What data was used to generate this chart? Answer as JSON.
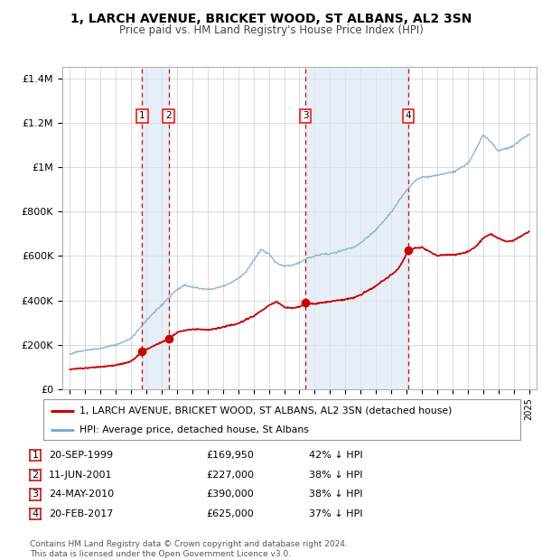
{
  "title": "1, LARCH AVENUE, BRICKET WOOD, ST ALBANS, AL2 3SN",
  "subtitle": "Price paid vs. HM Land Registry's House Price Index (HPI)",
  "background_color": "#ffffff",
  "plot_bg_color": "#ffffff",
  "grid_color": "#cccccc",
  "sale_dates": [
    1999.72,
    2001.44,
    2010.39,
    2017.13
  ],
  "sale_prices": [
    169950,
    227000,
    390000,
    625000
  ],
  "sale_labels": [
    "1",
    "2",
    "3",
    "4"
  ],
  "vline_color": "#dd0000",
  "vline_shade_color": "#dce8f5",
  "sale_dot_color": "#cc0000",
  "hpi_line_color": "#7aadd4",
  "price_line_color": "#cc0000",
  "legend_label_price": "1, LARCH AVENUE, BRICKET WOOD, ST ALBANS, AL2 3SN (detached house)",
  "legend_label_hpi": "HPI: Average price, detached house, St Albans",
  "table_rows": [
    [
      "1",
      "20-SEP-1999",
      "£169,950",
      "42% ↓ HPI"
    ],
    [
      "2",
      "11-JUN-2001",
      "£227,000",
      "38% ↓ HPI"
    ],
    [
      "3",
      "24-MAY-2010",
      "£390,000",
      "38% ↓ HPI"
    ],
    [
      "4",
      "20-FEB-2017",
      "£625,000",
      "37% ↓ HPI"
    ]
  ],
  "footnote": "Contains HM Land Registry data © Crown copyright and database right 2024.\nThis data is licensed under the Open Government Licence v3.0.",
  "xmin": 1994.5,
  "xmax": 2025.5,
  "ymin": 0,
  "ymax": 1450000,
  "yticks": [
    0,
    200000,
    400000,
    600000,
    800000,
    1000000,
    1200000,
    1400000
  ],
  "ytick_labels": [
    "£0",
    "£200K",
    "£400K",
    "£600K",
    "£800K",
    "£1M",
    "£1.2M",
    "£1.4M"
  ]
}
